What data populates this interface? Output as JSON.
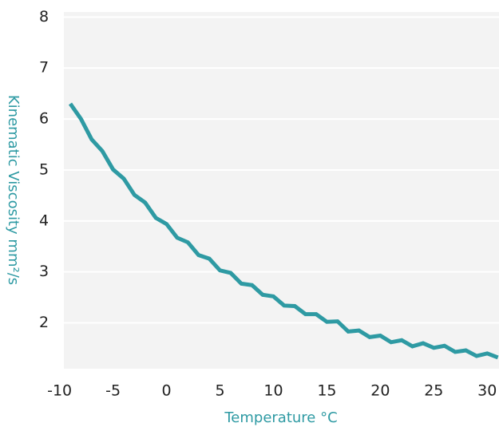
{
  "chart_data": {
    "type": "line",
    "x_label": "Temperature °C",
    "y_label": "Kinematic Viscosity mm²/s",
    "x": [
      -9,
      -8,
      -7,
      -6,
      -5,
      -4,
      -3,
      -2,
      -1,
      0,
      1,
      2,
      3,
      4,
      5,
      6,
      7,
      8,
      9,
      10,
      11,
      12,
      13,
      14,
      15,
      16,
      17,
      18,
      19,
      20,
      21,
      22,
      23,
      24,
      25,
      26,
      27,
      28,
      29,
      30,
      31
    ],
    "series": [
      {
        "color": "#2e9aa3",
        "values": [
          6.3,
          6.0,
          5.6,
          5.37,
          5.01,
          4.83,
          4.51,
          4.36,
          4.06,
          3.94,
          3.67,
          3.58,
          3.33,
          3.26,
          3.03,
          2.98,
          2.77,
          2.74,
          2.55,
          2.52,
          2.34,
          2.33,
          2.17,
          2.17,
          2.02,
          2.03,
          1.83,
          1.85,
          1.72,
          1.75,
          1.62,
          1.66,
          1.54,
          1.6,
          1.51,
          1.55,
          1.43,
          1.46,
          1.35,
          1.4,
          1.32
        ]
      }
    ],
    "xlim": [
      -9.6,
      31.1
    ],
    "xticks": [
      -10,
      -5,
      0,
      5,
      10,
      15,
      20,
      25,
      30
    ],
    "ylim": [
      1.1,
      8.1
    ],
    "yticks": [
      2,
      3,
      4,
      5,
      6,
      7,
      8
    ],
    "grid": true
  }
}
